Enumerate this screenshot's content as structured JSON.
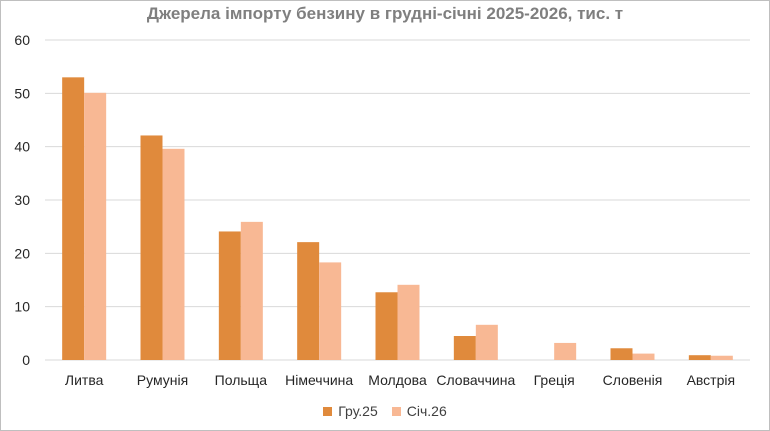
{
  "chart_data": {
    "type": "bar",
    "title": "Джерела імпорту бензину в грудні-січні 2025-2026, тис. т",
    "xlabel": "",
    "ylabel": "",
    "ylim": [
      0,
      60
    ],
    "yticks": [
      0,
      10,
      20,
      30,
      40,
      50,
      60
    ],
    "grid": true,
    "legend": "bottom",
    "categories": [
      "Литва",
      "Румунія",
      "Польща",
      "Німеччина",
      "Молдова",
      "Словаччина",
      "Греція",
      "Словенія",
      "Австрія"
    ],
    "series": [
      {
        "name": "Гру.25",
        "color": "#e08a3c",
        "values": [
          53.0,
          42.1,
          24.1,
          22.1,
          12.7,
          4.5,
          0.0,
          2.2,
          0.9
        ]
      },
      {
        "name": "Січ.26",
        "color": "#f8b894",
        "values": [
          50.1,
          39.6,
          25.9,
          18.3,
          14.1,
          6.6,
          3.2,
          1.2,
          0.8
        ]
      }
    ]
  }
}
